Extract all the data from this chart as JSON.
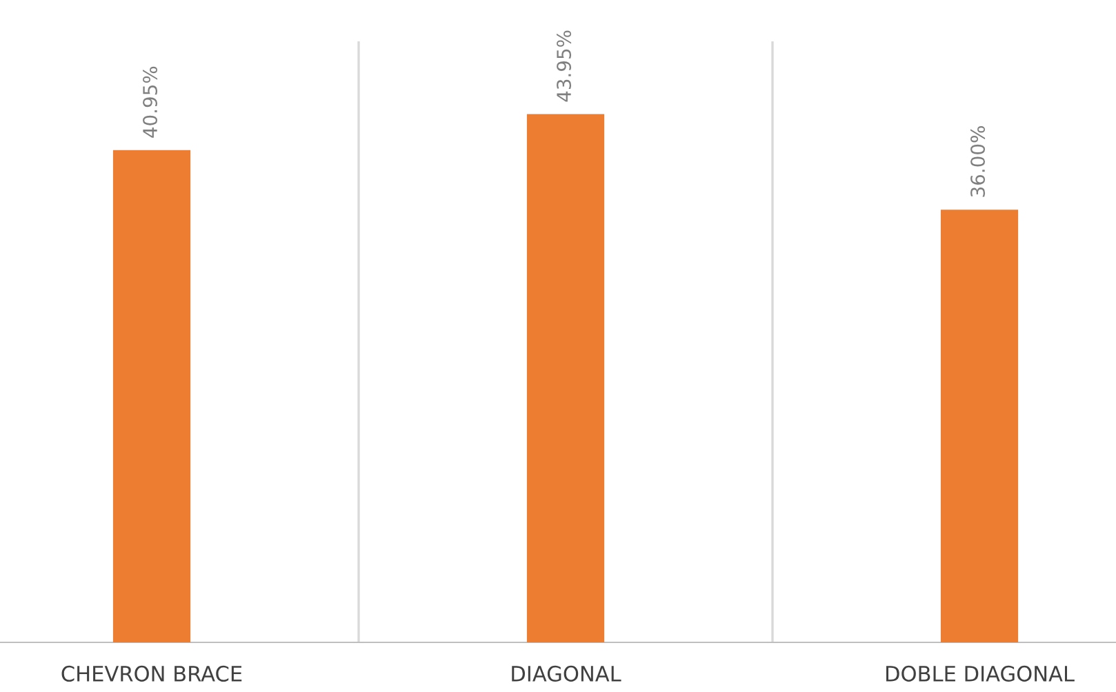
{
  "chart_data": {
    "type": "bar",
    "categories": [
      "CHEVRON BRACE",
      "DIAGONAL",
      "DOBLE DIAGONAL"
    ],
    "values": [
      40.95,
      43.95,
      36.0
    ],
    "value_labels": [
      "40.95%",
      "43.95%",
      "36.00%"
    ],
    "color": "#ed7d31",
    "ylim": [
      0,
      50
    ],
    "grid": "x",
    "tick_labels": "x"
  }
}
